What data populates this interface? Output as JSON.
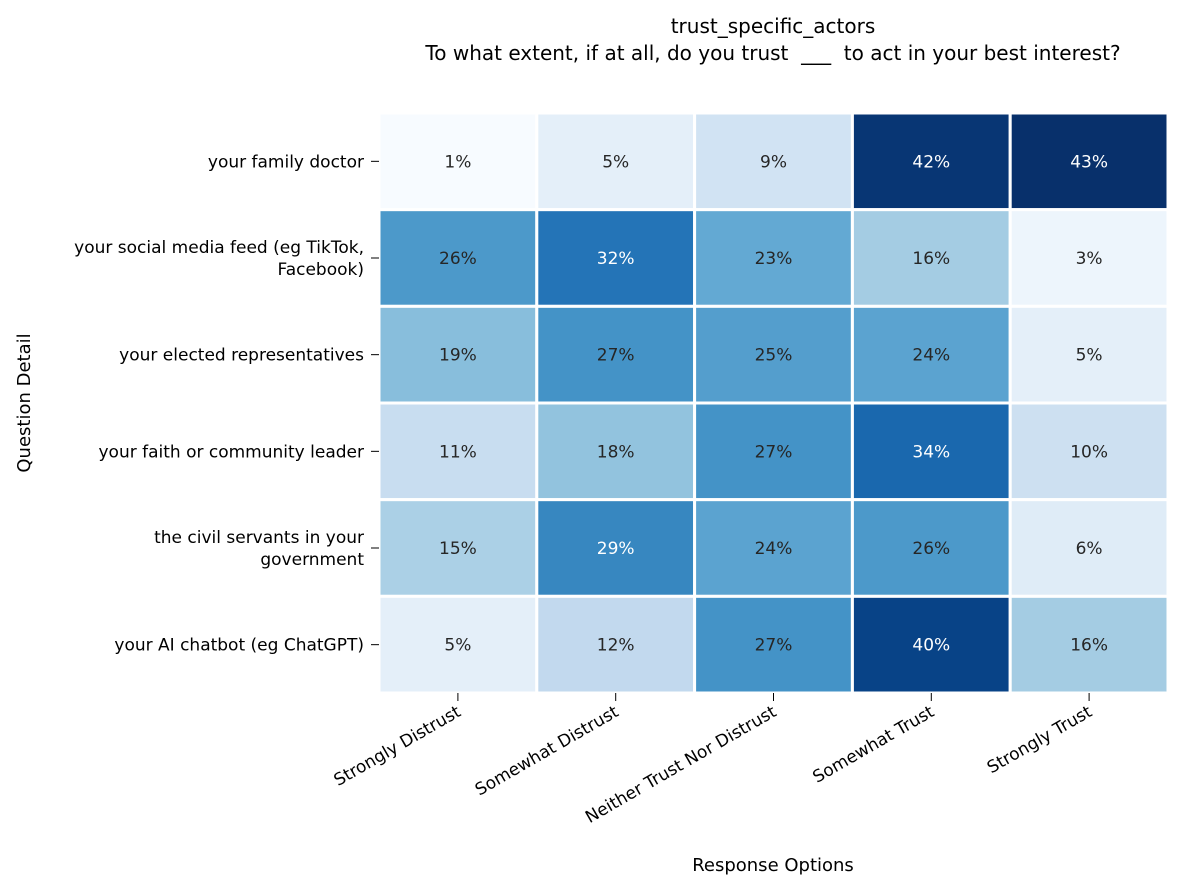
{
  "chart_data": {
    "type": "heatmap",
    "title": "trust_specific_actors",
    "subtitle": "To what extent, if at all, do you trust  ___  to act in your best interest?",
    "xlabel": "Response Options",
    "ylabel": "Question Detail",
    "x_categories": [
      "Strongly Distrust",
      "Somewhat Distrust",
      "Neither Trust Nor Distrust",
      "Somewhat Trust",
      "Strongly Trust"
    ],
    "y_categories": [
      [
        "your family doctor"
      ],
      [
        "your social media feed (eg TikTok,",
        "Facebook)"
      ],
      [
        "your elected representatives"
      ],
      [
        "your faith or community leader"
      ],
      [
        "the civil servants in your",
        "government"
      ],
      [
        "your AI chatbot (eg ChatGPT)"
      ]
    ],
    "values": [
      [
        1,
        5,
        9,
        42,
        43
      ],
      [
        26,
        32,
        23,
        16,
        3
      ],
      [
        19,
        27,
        25,
        24,
        5
      ],
      [
        11,
        18,
        27,
        34,
        10
      ],
      [
        15,
        29,
        24,
        26,
        6
      ],
      [
        5,
        12,
        27,
        40,
        16
      ]
    ],
    "value_suffix": "%",
    "colormap": "Blues",
    "vmin": 1,
    "vmax": 43,
    "colorbar": false,
    "grid": false
  }
}
